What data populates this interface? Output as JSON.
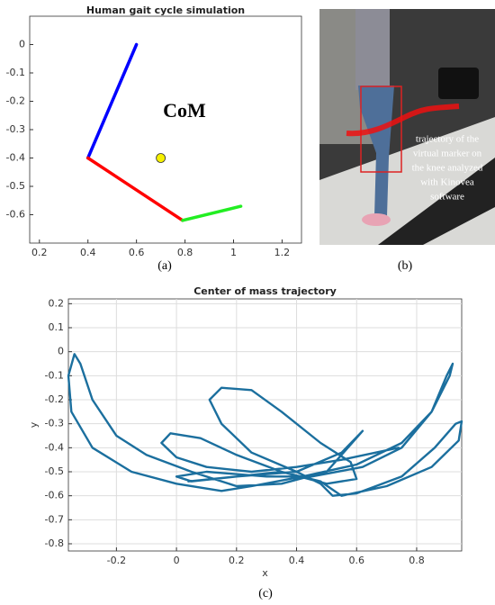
{
  "chart_data": [
    {
      "type": "line",
      "title": "Human gait cycle simulation",
      "caption": "(a)",
      "annotation": "CoM",
      "xlim": [
        0.16,
        1.28
      ],
      "xticks": [
        0.2,
        0.4,
        0.6,
        0.8,
        1,
        1.2
      ],
      "ylim": [
        -0.7,
        0.1
      ],
      "yticks": [
        0,
        -0.1,
        -0.2,
        -0.3,
        -0.4,
        -0.5,
        -0.6
      ],
      "grid": false,
      "series": [
        {
          "color": "#0000ff",
          "x": [
            0.6,
            0.4
          ],
          "values": [
            0,
            -0.4
          ]
        },
        {
          "color": "#ff0000",
          "x": [
            0.4,
            0.79
          ],
          "values": [
            -0.4,
            -0.62
          ]
        },
        {
          "color": "#22ee22",
          "x": [
            0.79,
            1.03
          ],
          "values": [
            -0.62,
            -0.57
          ]
        },
        {
          "color": "#f5f000",
          "style": "point",
          "x": [
            0.7
          ],
          "values": [
            -0.4
          ]
        }
      ]
    },
    {
      "type": "image",
      "caption": "(b)",
      "annotation_lines": [
        "trajectory of the",
        "virtual marker on",
        "the knee analyzed",
        "with Kinovea",
        "software"
      ]
    },
    {
      "type": "line",
      "title": "Center of mass trajectory",
      "caption": "(c)",
      "xlabel": "x",
      "ylabel": "y",
      "xlim": [
        -0.36,
        0.95
      ],
      "xticks": [
        -0.2,
        0,
        0.2,
        0.4,
        0.6,
        0.8
      ],
      "ylim": [
        -0.83,
        0.22
      ],
      "yticks": [
        0.2,
        0.1,
        0,
        -0.1,
        -0.2,
        -0.3,
        -0.4,
        -0.5,
        -0.6,
        -0.7,
        -0.8
      ],
      "grid": true,
      "series": [
        {
          "color": "#1b6f9e",
          "x": [
            0.74,
            0.55,
            0.4,
            0.25,
            0.1,
            0.0,
            -0.05,
            -0.02,
            0.08,
            0.2,
            0.35,
            0.5,
            0.6,
            0.58,
            0.48,
            0.35,
            0.25,
            0.15,
            0.11,
            0.15,
            0.25,
            0.4,
            0.48,
            0.52,
            0.6,
            0.75,
            0.86,
            0.93,
            0.95,
            0.94,
            0.85,
            0.7,
            0.55,
            0.48,
            0.35,
            0.2,
            0.05,
            0.0,
            0.1,
            0.3,
            0.45,
            0.62,
            0.75,
            0.85,
            0.9,
            0.92,
            0.91,
            0.85,
            0.75,
            0.6,
            0.42,
            0.25,
            0.15,
            0.0,
            -0.15,
            -0.28,
            -0.35,
            -0.36,
            -0.34,
            -0.32,
            -0.28,
            -0.2,
            -0.1,
            0.05,
            0.2,
            0.35,
            0.5,
            0.62,
            0.55,
            0.4,
            0.2,
            0.04
          ],
          "values": [
            -0.4,
            -0.45,
            -0.48,
            -0.5,
            -0.48,
            -0.44,
            -0.38,
            -0.34,
            -0.36,
            -0.43,
            -0.5,
            -0.55,
            -0.53,
            -0.46,
            -0.38,
            -0.25,
            -0.16,
            -0.15,
            -0.2,
            -0.3,
            -0.42,
            -0.5,
            -0.55,
            -0.6,
            -0.59,
            -0.52,
            -0.4,
            -0.3,
            -0.29,
            -0.37,
            -0.48,
            -0.56,
            -0.6,
            -0.54,
            -0.5,
            -0.52,
            -0.54,
            -0.52,
            -0.5,
            -0.52,
            -0.52,
            -0.48,
            -0.4,
            -0.25,
            -0.1,
            -0.05,
            -0.1,
            -0.25,
            -0.38,
            -0.47,
            -0.52,
            -0.56,
            -0.58,
            -0.55,
            -0.5,
            -0.4,
            -0.25,
            -0.1,
            -0.01,
            -0.05,
            -0.2,
            -0.35,
            -0.43,
            -0.5,
            -0.56,
            -0.55,
            -0.5,
            -0.33,
            -0.42,
            -0.5,
            -0.52,
            -0.54
          ]
        }
      ]
    }
  ]
}
